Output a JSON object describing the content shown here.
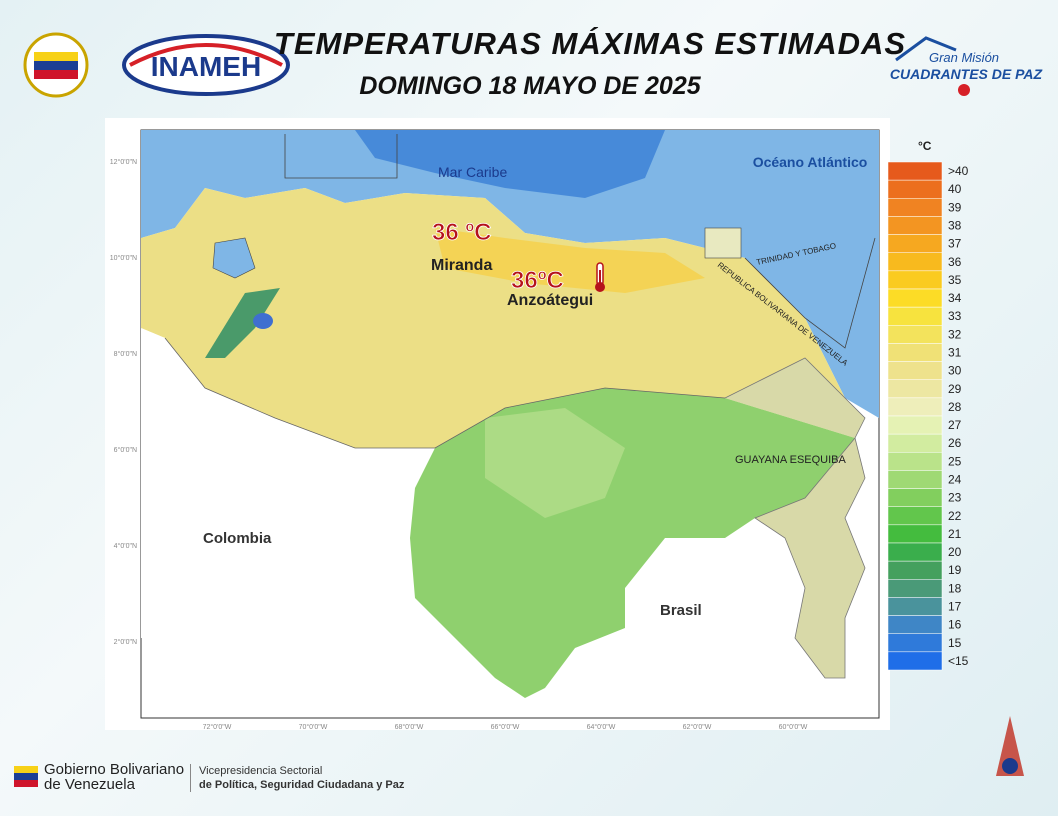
{
  "header": {
    "title": "TEMPERATURAS MÁXIMAS ESTIMADAS",
    "subtitle": "DOMINGO 18 MAYO DE 2025"
  },
  "logos": {
    "inameh": "INAMEH",
    "mission_top": "Gran Misión",
    "mission_bottom": "CUADRANTES DE PAZ"
  },
  "map": {
    "sea_north": "Mar Caribe",
    "ocean": "Océano Atlántico",
    "colombia": "Colombia",
    "brasil": "Brasil",
    "guayana": "GUAYANA ESEQUIBA",
    "trinidad": "TRINIDAD Y TOBAGO",
    "border": "REPUBLICA BOLIVARIANA DE VENEZUELA",
    "annotations": [
      {
        "value": "36 ºC",
        "place": "Miranda"
      },
      {
        "value": "36ºC",
        "place": "Anzoátegui"
      }
    ],
    "lat_labels": [
      "12°0'0\"N",
      "10°0'0\"N",
      "8°0'0\"N",
      "6°0'0\"N",
      "4°0'0\"N",
      "2°0'0\"N"
    ],
    "lon_labels": [
      "72°0'0\"W",
      "70°0'0\"W",
      "68°0'0\"W",
      "66°0'0\"W",
      "64°0'0\"W",
      "62°0'0\"W",
      "60°0'0\"W"
    ]
  },
  "legend": {
    "unit": "°C",
    "items": [
      {
        "label": ">40",
        "color": "#e65a1c"
      },
      {
        "label": "40",
        "color": "#ec6f1e"
      },
      {
        "label": "39",
        "color": "#f08322"
      },
      {
        "label": "38",
        "color": "#f39522"
      },
      {
        "label": "37",
        "color": "#f6a820"
      },
      {
        "label": "36",
        "color": "#f8ba1e"
      },
      {
        "label": "35",
        "color": "#facb20"
      },
      {
        "label": "34",
        "color": "#fcdc26"
      },
      {
        "label": "33",
        "color": "#f7e33e"
      },
      {
        "label": "32",
        "color": "#f3e35c"
      },
      {
        "label": "31",
        "color": "#f0e176"
      },
      {
        "label": "30",
        "color": "#eee28c"
      },
      {
        "label": "29",
        "color": "#ede7a2"
      },
      {
        "label": "28",
        "color": "#eeeeba"
      },
      {
        "label": "27",
        "color": "#e5f2b4"
      },
      {
        "label": "26",
        "color": "#d2eca0"
      },
      {
        "label": "25",
        "color": "#bae38a"
      },
      {
        "label": "24",
        "color": "#9fd974"
      },
      {
        "label": "23",
        "color": "#82cf5e"
      },
      {
        "label": "22",
        "color": "#62c64c"
      },
      {
        "label": "21",
        "color": "#44bc3e"
      },
      {
        "label": "20",
        "color": "#3aae4c"
      },
      {
        "label": "19",
        "color": "#44a05e"
      },
      {
        "label": "18",
        "color": "#4a9a78"
      },
      {
        "label": "17",
        "color": "#4a939c"
      },
      {
        "label": "16",
        "color": "#3f86c6"
      },
      {
        "label": "15",
        "color": "#2f7ada"
      },
      {
        "label": "<15",
        "color": "#1f6ee8"
      }
    ]
  },
  "footer": {
    "gov_line1": "Gobierno Bolivariano",
    "gov_line2": "de Venezuela",
    "vp_line1": "Vicepresidencia Sectorial",
    "vp_line2": "de Política, Seguridad Ciudadana y Paz"
  }
}
